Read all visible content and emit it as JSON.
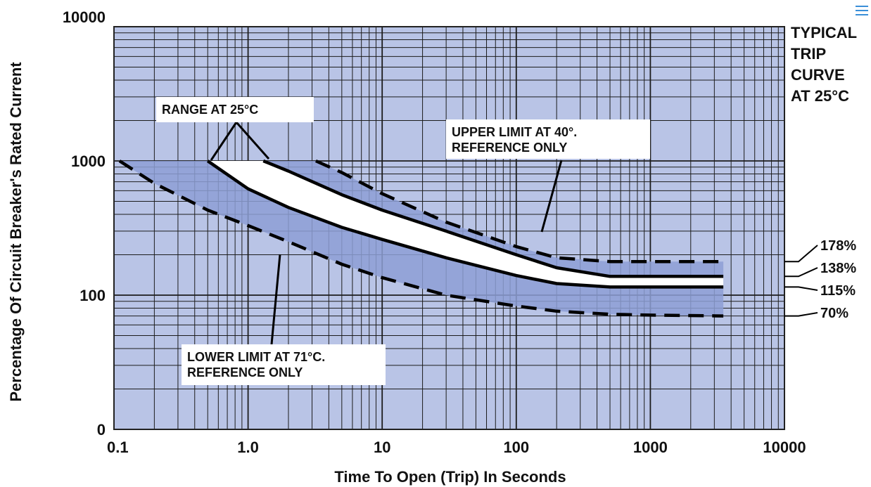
{
  "chart_data": {
    "type": "line",
    "title_lines": [
      "TYPICAL",
      "TRIP",
      "CURVE",
      "AT 25°C"
    ],
    "xlabel": "Time To Open (Trip) In Seconds",
    "ylabel": "Percentage Of Circuit Breaker's Rated Current",
    "x_scale": "log",
    "y_scale": "log",
    "xlim": [
      0.1,
      10000
    ],
    "x_ticks": [
      0.1,
      1,
      10,
      100,
      1000,
      10000
    ],
    "x_tick_labels": [
      "0.1",
      "1.0",
      "10",
      "100",
      "1000",
      "10000"
    ],
    "y_ticks": [
      0,
      100,
      1000,
      10000
    ],
    "y_tick_labels": [
      "0",
      "100",
      "1000",
      "10000"
    ],
    "grid": true,
    "bands": [
      {
        "name": "RANGE AT 25°C",
        "lower_series": "Lower curve at 25°C",
        "upper_series": "Upper curve at 25°C",
        "color": "#ffffff"
      },
      {
        "name": "Extended range",
        "lower_series": "LOWER LIMIT AT 71°C. REFERENCE ONLY",
        "upper_series": "UPPER LIMIT AT 40°. REFERENCE ONLY",
        "color": "#8d9fd5"
      }
    ],
    "series": [
      {
        "name": "LOWER LIMIT AT 71°C. REFERENCE ONLY",
        "style": "dashed",
        "x": [
          0.11,
          0.2,
          0.5,
          1,
          2,
          5,
          10,
          30,
          100,
          200,
          500,
          1000,
          3500
        ],
        "y": [
          1000,
          680,
          430,
          330,
          250,
          170,
          135,
          100,
          83,
          76,
          72,
          71,
          70
        ]
      },
      {
        "name": "Lower curve at 25°C",
        "style": "solid",
        "x": [
          0.5,
          1,
          2,
          5,
          10,
          30,
          100,
          200,
          500,
          1000,
          3500
        ],
        "y": [
          1000,
          620,
          450,
          320,
          260,
          190,
          140,
          122,
          115,
          115,
          115
        ]
      },
      {
        "name": "Upper curve at 25°C",
        "style": "solid",
        "x": [
          1.3,
          2,
          5,
          10,
          30,
          100,
          200,
          500,
          1000,
          3500
        ],
        "y": [
          1000,
          840,
          560,
          430,
          300,
          200,
          160,
          138,
          138,
          138
        ]
      },
      {
        "name": "UPPER LIMIT AT 40°. REFERENCE ONLY",
        "style": "dashed",
        "x": [
          3.2,
          5,
          10,
          30,
          100,
          200,
          500,
          1000,
          3500
        ],
        "y": [
          1000,
          820,
          570,
          350,
          230,
          190,
          178,
          178,
          178
        ]
      }
    ],
    "annotations": [
      {
        "text_lines": [
          "RANGE AT 25°C"
        ]
      },
      {
        "text_lines": [
          "UPPER LIMIT AT 40°.",
          "REFERENCE ONLY"
        ]
      },
      {
        "text_lines": [
          "LOWER LIMIT AT 71°C.",
          "REFERENCE ONLY"
        ]
      }
    ],
    "right_labels": [
      {
        "text": "178%",
        "value": 178
      },
      {
        "text": "138%",
        "value": 138
      },
      {
        "text": "115%",
        "value": 115
      },
      {
        "text": "70%",
        "value": 70
      }
    ]
  }
}
